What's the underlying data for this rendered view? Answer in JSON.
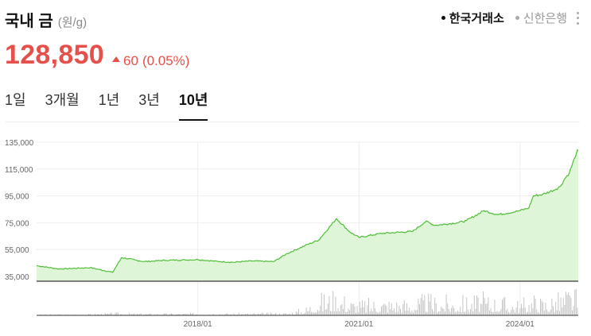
{
  "header": {
    "title": "국내 금",
    "unit": "(원/g)"
  },
  "sources": [
    {
      "label": "한국거래소",
      "active": true
    },
    {
      "label": "신한은행",
      "active": false
    }
  ],
  "price": {
    "value": "128,850",
    "change": "60",
    "change_pct": "(0.05%)",
    "direction": "up",
    "color": "#e5504a"
  },
  "tabs": [
    {
      "label": "1일",
      "active": false
    },
    {
      "label": "3개월",
      "active": false
    },
    {
      "label": "1년",
      "active": false
    },
    {
      "label": "3년",
      "active": false
    },
    {
      "label": "10년",
      "active": true
    }
  ],
  "chart_data": {
    "type": "area",
    "line_color": "#4fbe36",
    "fill_color": "#dff5d8",
    "y_ticks": [
      "135,000",
      "115,000",
      "95,000",
      "75,000",
      "55,000",
      "35,000"
    ],
    "y_tick_values": [
      135000,
      115000,
      95000,
      75000,
      55000,
      35000
    ],
    "ylim": [
      32000,
      135000
    ],
    "x_ticks": [
      "2018/01",
      "2021/01",
      "2024/01"
    ],
    "x_tick_dates": [
      "2018-01-01",
      "2021-01-01",
      "2024-01-01"
    ],
    "x_range": [
      "2015-01-01",
      "2025-01-31"
    ],
    "grid": true,
    "series": [
      {
        "x": [
          "2015-01-01",
          "2015-06-01",
          "2016-01-01",
          "2016-06-01",
          "2016-08-01",
          "2017-01-01",
          "2017-06-01",
          "2018-01-01",
          "2018-06-01",
          "2018-09-01",
          "2019-01-01",
          "2019-06-01",
          "2019-09-01",
          "2020-01-01",
          "2020-04-01",
          "2020-08-01",
          "2020-11-01",
          "2021-01-01",
          "2021-06-01",
          "2022-01-01",
          "2022-04-01",
          "2022-06-01",
          "2022-11-01",
          "2023-01-01",
          "2023-05-01",
          "2023-08-01",
          "2023-10-01",
          "2024-01-01",
          "2024-03-01",
          "2024-04-01",
          "2024-06-01",
          "2024-09-01",
          "2024-10-01",
          "2024-11-01",
          "2024-12-01",
          "2025-01-20",
          "2025-01-31"
        ],
        "y": [
          43000,
          40500,
          41500,
          38000,
          49000,
          46000,
          47000,
          47500,
          46000,
          45500,
          46500,
          46000,
          52000,
          58000,
          62000,
          78000,
          68000,
          64000,
          67000,
          68500,
          76000,
          73000,
          75000,
          76500,
          84000,
          81000,
          82000,
          84000,
          86000,
          95000,
          96000,
          100000,
          102000,
          108000,
          112000,
          127500,
          128850
        ]
      }
    ],
    "volume": {
      "x": [
        "2015-01-01",
        "2016-01-01",
        "2016-08-01",
        "2017-01-01",
        "2018-01-01",
        "2019-01-01",
        "2019-09-01",
        "2020-01-01",
        "2020-04-01",
        "2020-08-01",
        "2020-11-01",
        "2021-01-01",
        "2021-06-01",
        "2022-01-01",
        "2022-04-01",
        "2022-06-01",
        "2023-01-01",
        "2023-05-01",
        "2024-01-01",
        "2024-04-01",
        "2024-06-01",
        "2024-10-01",
        "2024-12-01",
        "2025-01-31"
      ],
      "level": [
        0.02,
        0.03,
        0.06,
        0.04,
        0.05,
        0.05,
        0.06,
        0.18,
        0.45,
        0.55,
        0.38,
        0.32,
        0.38,
        0.35,
        0.45,
        0.4,
        0.4,
        0.45,
        0.32,
        0.45,
        0.38,
        0.48,
        0.6,
        0.5
      ]
    }
  }
}
